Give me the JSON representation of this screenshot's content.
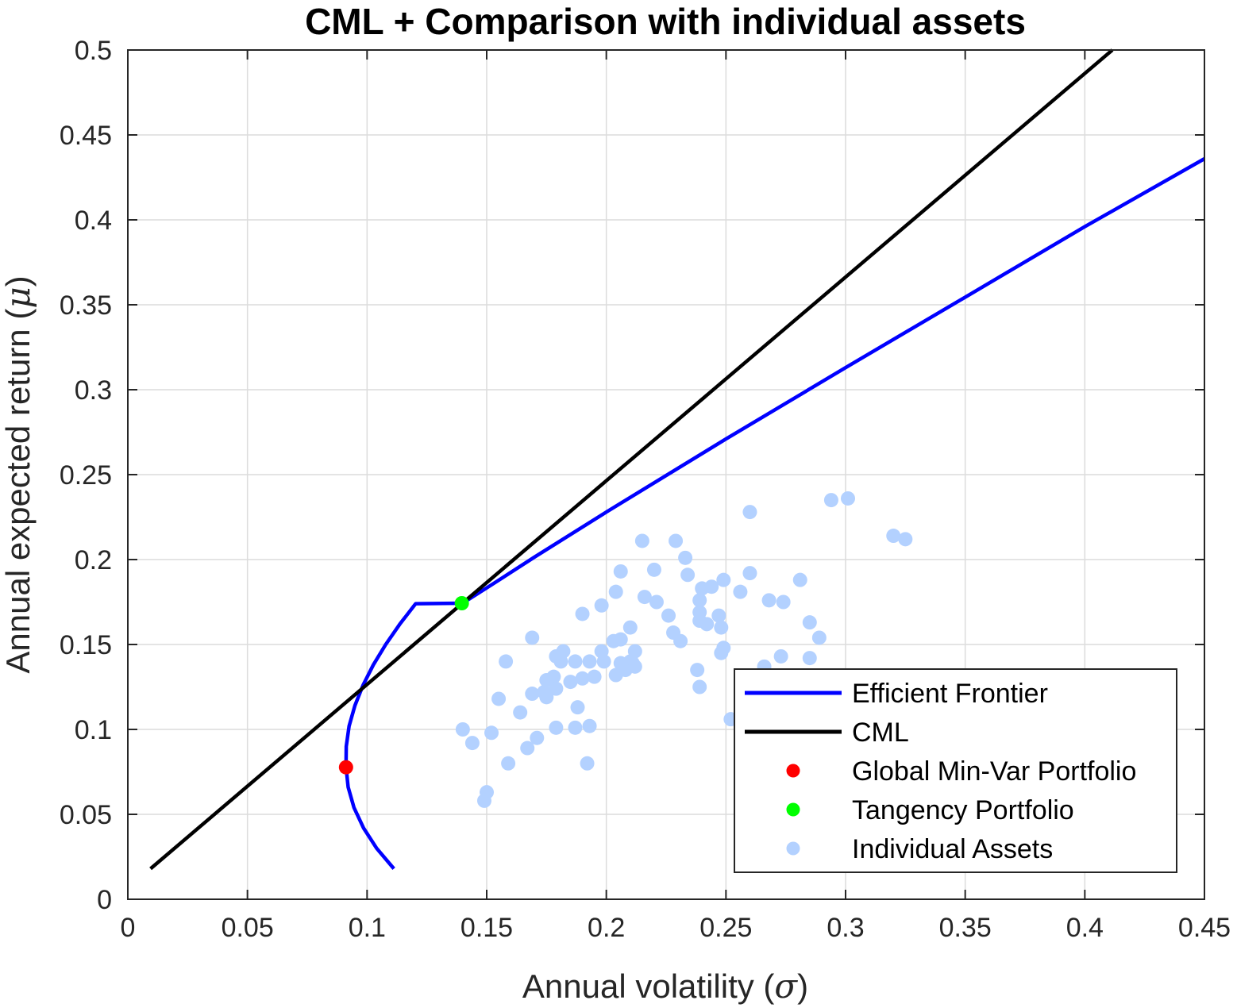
{
  "chart_data": {
    "type": "line",
    "title": "CML + Comparison with individual assets",
    "xlabel": "Annual volatility (σ)",
    "xlabel_text": "Annual volatility (",
    "xlabel_symbol": "σ",
    "ylabel": "Annual expected return (μ)",
    "ylabel_text": "Annual expected return (",
    "ylabel_symbol": "μ",
    "label_close": ")",
    "xlim": [
      0,
      0.45
    ],
    "ylim": [
      0,
      0.5
    ],
    "xticks": [
      0,
      0.05,
      0.1,
      0.15,
      0.2,
      0.25,
      0.3,
      0.35,
      0.4,
      0.45
    ],
    "xtick_labels": [
      "0",
      "0.05",
      "0.1",
      "0.15",
      "0.2",
      "0.25",
      "0.3",
      "0.35",
      "0.4",
      "0.45"
    ],
    "yticks": [
      0,
      0.05,
      0.1,
      0.15,
      0.2,
      0.25,
      0.3,
      0.35,
      0.4,
      0.45,
      0.5
    ],
    "ytick_labels": [
      "0",
      "0.05",
      "0.1",
      "0.15",
      "0.2",
      "0.25",
      "0.3",
      "0.35",
      "0.4",
      "0.45",
      "0.5"
    ],
    "grid": true,
    "legend_position": "bottom-right",
    "colors": {
      "frontier": "#0000ff",
      "cml": "#000000",
      "gmv": "#ff0000",
      "tangency": "#00ff00",
      "assets": "#b3d1ff",
      "grid": "#dcdcdc"
    },
    "series": [
      {
        "name": "Efficient Frontier",
        "kind": "line",
        "color": "#0000ff",
        "x": [
          0.1112,
          0.104,
          0.0985,
          0.0945,
          0.0921,
          0.0912,
          0.0913,
          0.0925,
          0.0949,
          0.0983,
          0.1026,
          0.1078,
          0.1137,
          0.1203,
          0.1275,
          0.1352,
          0.1396,
          0.152,
          0.17,
          0.2,
          0.25,
          0.3,
          0.35,
          0.4,
          0.45
        ],
        "y": [
          0.018,
          0.03,
          0.042,
          0.054,
          0.066,
          0.078,
          0.09,
          0.102,
          0.114,
          0.126,
          0.138,
          0.15,
          0.162,
          0.174,
          0.186,
          0.198,
          0.174,
          0.1851,
          0.2015,
          0.228,
          0.271,
          0.313,
          0.3545,
          0.396,
          0.436
        ]
      },
      {
        "name": "CML",
        "kind": "line",
        "color": "#000000",
        "x": [
          0.0095,
          0.4115
        ],
        "y": [
          0.018,
          0.5
        ]
      },
      {
        "name": "Global Min-Var Portfolio",
        "kind": "point",
        "color": "#ff0000",
        "x": [
          0.0912
        ],
        "y": [
          0.0777
        ]
      },
      {
        "name": "Tangency Portfolio",
        "kind": "point",
        "color": "#00ff00",
        "x": [
          0.1396
        ],
        "y": [
          0.1743
        ]
      },
      {
        "name": "Individual Assets",
        "kind": "scatter",
        "color": "#b3d1ff",
        "points": [
          [
            0.14,
            0.1
          ],
          [
            0.144,
            0.092
          ],
          [
            0.149,
            0.058
          ],
          [
            0.15,
            0.063
          ],
          [
            0.152,
            0.098
          ],
          [
            0.155,
            0.118
          ],
          [
            0.158,
            0.14
          ],
          [
            0.159,
            0.08
          ],
          [
            0.164,
            0.11
          ],
          [
            0.167,
            0.089
          ],
          [
            0.169,
            0.121
          ],
          [
            0.169,
            0.154
          ],
          [
            0.171,
            0.095
          ],
          [
            0.174,
            0.122
          ],
          [
            0.175,
            0.119
          ],
          [
            0.175,
            0.129
          ],
          [
            0.178,
            0.131
          ],
          [
            0.179,
            0.101
          ],
          [
            0.179,
            0.124
          ],
          [
            0.179,
            0.143
          ],
          [
            0.181,
            0.14
          ],
          [
            0.182,
            0.146
          ],
          [
            0.185,
            0.128
          ],
          [
            0.187,
            0.101
          ],
          [
            0.187,
            0.14
          ],
          [
            0.188,
            0.113
          ],
          [
            0.19,
            0.13
          ],
          [
            0.19,
            0.168
          ],
          [
            0.192,
            0.08
          ],
          [
            0.193,
            0.14
          ],
          [
            0.193,
            0.102
          ],
          [
            0.195,
            0.131
          ],
          [
            0.198,
            0.146
          ],
          [
            0.198,
            0.173
          ],
          [
            0.199,
            0.14
          ],
          [
            0.203,
            0.152
          ],
          [
            0.204,
            0.181
          ],
          [
            0.204,
            0.132
          ],
          [
            0.206,
            0.139
          ],
          [
            0.206,
            0.193
          ],
          [
            0.206,
            0.153
          ],
          [
            0.208,
            0.135
          ],
          [
            0.21,
            0.14
          ],
          [
            0.21,
            0.16
          ],
          [
            0.211,
            0.139
          ],
          [
            0.212,
            0.146
          ],
          [
            0.212,
            0.137
          ],
          [
            0.215,
            0.211
          ],
          [
            0.216,
            0.178
          ],
          [
            0.22,
            0.194
          ],
          [
            0.221,
            0.175
          ],
          [
            0.226,
            0.167
          ],
          [
            0.228,
            0.157
          ],
          [
            0.229,
            0.211
          ],
          [
            0.231,
            0.152
          ],
          [
            0.233,
            0.201
          ],
          [
            0.234,
            0.191
          ],
          [
            0.238,
            0.135
          ],
          [
            0.239,
            0.125
          ],
          [
            0.239,
            0.169
          ],
          [
            0.239,
            0.164
          ],
          [
            0.239,
            0.176
          ],
          [
            0.24,
            0.183
          ],
          [
            0.242,
            0.162
          ],
          [
            0.244,
            0.184
          ],
          [
            0.247,
            0.167
          ],
          [
            0.248,
            0.16
          ],
          [
            0.248,
            0.145
          ],
          [
            0.249,
            0.148
          ],
          [
            0.249,
            0.188
          ],
          [
            0.252,
            0.106
          ],
          [
            0.256,
            0.181
          ],
          [
            0.26,
            0.192
          ],
          [
            0.26,
            0.228
          ],
          [
            0.266,
            0.137
          ],
          [
            0.268,
            0.176
          ],
          [
            0.273,
            0.143
          ],
          [
            0.274,
            0.175
          ],
          [
            0.281,
            0.188
          ],
          [
            0.285,
            0.163
          ],
          [
            0.285,
            0.142
          ],
          [
            0.289,
            0.154
          ],
          [
            0.294,
            0.235
          ],
          [
            0.301,
            0.236
          ],
          [
            0.32,
            0.214
          ],
          [
            0.325,
            0.212
          ]
        ]
      }
    ]
  }
}
